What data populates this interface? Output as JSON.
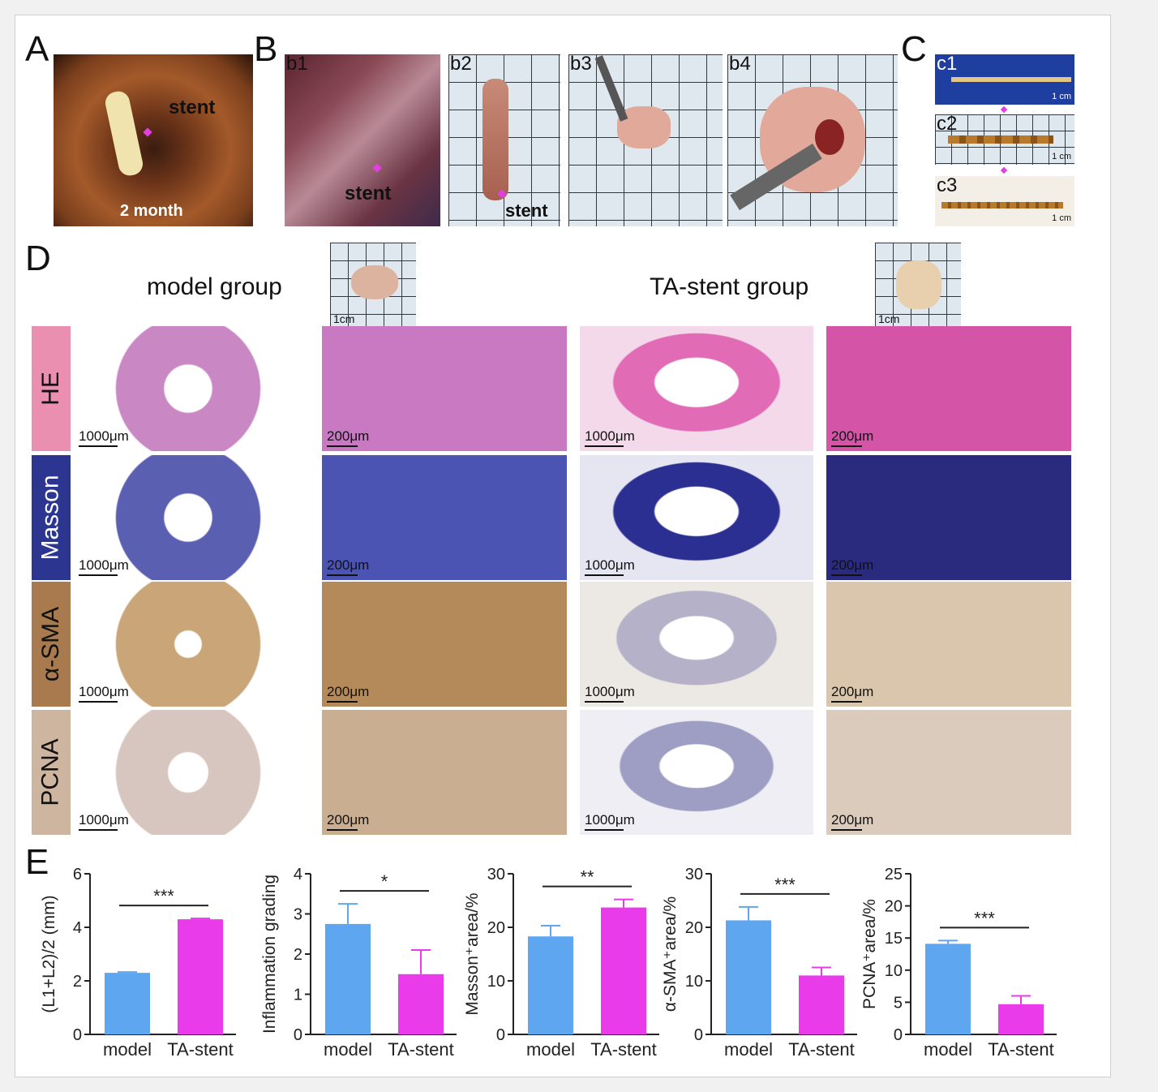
{
  "panels": {
    "A": {
      "letter": "A",
      "stent": "stent",
      "time": "2 month"
    },
    "B": {
      "letter": "B",
      "b1": "b1",
      "b2": "b2",
      "b3": "b3",
      "b4": "b4",
      "stent_b1": "stent",
      "stent_b2": "stent"
    },
    "C": {
      "letter": "C",
      "c1": "c1",
      "c2": "c2",
      "c3": "c3",
      "scale": "1 cm"
    },
    "D": {
      "letter": "D",
      "model_group": "model group",
      "ta_group": "TA-stent group",
      "inset_scale": "1cm",
      "stains": [
        "HE",
        "Masson",
        "α-SMA",
        "PCNA"
      ],
      "stain_colors": [
        "#ea8fb0",
        "#2c3590",
        "#a87a4d",
        "#cdb5a0"
      ],
      "scale_low": "1000μm",
      "scale_high": "200μm"
    },
    "E": {
      "letter": "E"
    }
  },
  "chart_data": [
    {
      "type": "bar",
      "ylabel": "(L1+L2)/2 (mm)",
      "categories": [
        "model",
        "TA-stent"
      ],
      "values": [
        2.3,
        4.3
      ],
      "errors": [
        0.03,
        0.03
      ],
      "ylim": [
        0,
        6
      ],
      "yticks": [
        0,
        2,
        4,
        6
      ],
      "significance": "***",
      "colors": [
        "#5ea7f0",
        "#e93bea"
      ]
    },
    {
      "type": "bar",
      "ylabel": "Inflammation grading",
      "categories": [
        "model",
        "TA-stent"
      ],
      "values": [
        2.75,
        1.5
      ],
      "errors": [
        0.5,
        0.6
      ],
      "ylim": [
        0,
        4
      ],
      "yticks": [
        0,
        1,
        2,
        3,
        4
      ],
      "significance": "*",
      "colors": [
        "#5ea7f0",
        "#e93bea"
      ]
    },
    {
      "type": "bar",
      "ylabel": "Masson⁺area/%",
      "categories": [
        "model",
        "TA-stent"
      ],
      "values": [
        18.3,
        23.7
      ],
      "errors": [
        2.0,
        1.5
      ],
      "ylim": [
        0,
        30
      ],
      "yticks": [
        0,
        10,
        20,
        30
      ],
      "significance": "**",
      "colors": [
        "#5ea7f0",
        "#e93bea"
      ]
    },
    {
      "type": "bar",
      "ylabel": "α-SMA⁺area/%",
      "categories": [
        "model",
        "TA-stent"
      ],
      "values": [
        21.3,
        11.0
      ],
      "errors": [
        2.5,
        1.5
      ],
      "ylim": [
        0,
        30
      ],
      "yticks": [
        0,
        10,
        20,
        30
      ],
      "significance": "***",
      "colors": [
        "#5ea7f0",
        "#e93bea"
      ]
    },
    {
      "type": "bar",
      "ylabel": "PCNA⁺area/%",
      "categories": [
        "model",
        "TA-stent"
      ],
      "values": [
        14.1,
        4.7
      ],
      "errors": [
        0.5,
        1.3
      ],
      "ylim": [
        0,
        25
      ],
      "yticks": [
        0,
        5,
        10,
        15,
        20,
        25
      ],
      "significance": "***",
      "colors": [
        "#5ea7f0",
        "#e93bea"
      ]
    }
  ]
}
